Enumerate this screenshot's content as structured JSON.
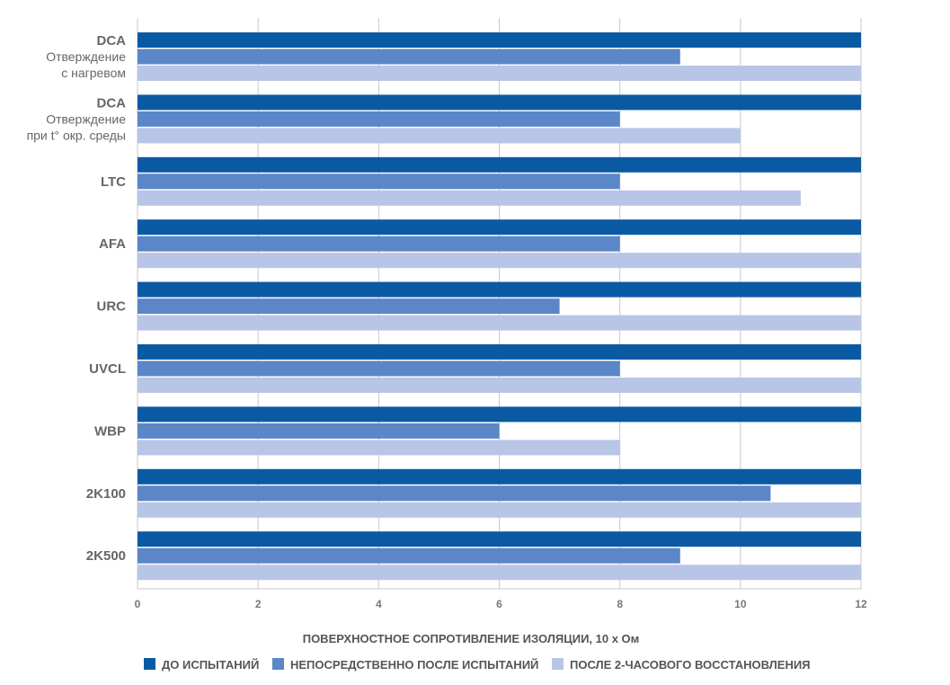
{
  "chart_data": {
    "type": "bar",
    "orientation": "horizontal",
    "categories": [
      [
        "DCA",
        "Отверждение",
        "с нагревом"
      ],
      [
        "DCA",
        "Отверждение",
        "при t° окр. среды"
      ],
      [
        "LTC"
      ],
      [
        "AFA"
      ],
      [
        "URC"
      ],
      [
        "UVCL"
      ],
      [
        "WBP"
      ],
      [
        "2K100"
      ],
      [
        "2K500"
      ]
    ],
    "series": [
      {
        "name": "ДО ИСПЫТАНИЙ",
        "color": "#0a5aa3",
        "values": [
          12,
          12,
          12,
          12,
          12,
          12,
          12,
          12,
          12
        ]
      },
      {
        "name": "НЕПОСРЕДСТВЕННО ПОСЛЕ ИСПЫТАНИЙ",
        "color": "#5b86c7",
        "values": [
          9,
          8,
          8,
          8,
          7,
          8,
          6,
          10.5,
          9
        ]
      },
      {
        "name": "ПОСЛЕ 2-ЧАСОВОГО ВОССТАНОВЛЕНИЯ",
        "color": "#b8c5e6",
        "values": [
          12,
          10,
          11,
          12,
          12,
          12,
          8,
          12,
          12
        ]
      }
    ],
    "xlim": [
      0,
      12
    ],
    "xticks": [
      0,
      2,
      4,
      6,
      8,
      10,
      12
    ],
    "xlabel": "ПОВЕРХНОСТНОЕ СОПРОТИВЛЕНИЕ ИЗОЛЯЦИИ, 10 х Ом",
    "grid": true,
    "legend_position": "bottom"
  }
}
